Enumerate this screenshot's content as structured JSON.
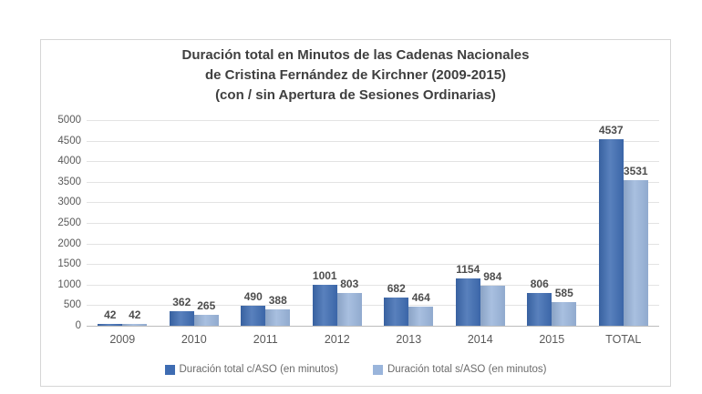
{
  "chart_data": {
    "type": "bar",
    "title": "Duración total en Minutos de las Cadenas Nacionales de Cristina Fernández de Kirchner (2009-2015) (con / sin Apertura de Sesiones Ordinarias)",
    "title_lines": [
      "Duración total en Minutos de las Cadenas Nacionales",
      "de Cristina Fernández de Kirchner (2009-2015)",
      "(con / sin Apertura de Sesiones Ordinarias)"
    ],
    "categories": [
      "2009",
      "2010",
      "2011",
      "2012",
      "2013",
      "2014",
      "2015",
      "TOTAL"
    ],
    "series": [
      {
        "name": "Duración total c/ASO (en minutos)",
        "color": "#3e6cb2",
        "values": [
          42,
          362,
          490,
          1001,
          682,
          1154,
          806,
          4537
        ]
      },
      {
        "name": "Duración total s/ASO (en minutos)",
        "color": "#9ab5db",
        "values": [
          42,
          265,
          388,
          803,
          464,
          984,
          585,
          3531
        ]
      }
    ],
    "xlabel": "",
    "ylabel": "",
    "ylim": [
      0,
      5000
    ],
    "ytick_step": 500,
    "grid": "horizontal",
    "legend_position": "bottom"
  },
  "colors": {
    "gridline": "#e3e3e3",
    "axis_line": "#bdbdbd",
    "tick_text": "#595959",
    "title_text": "#3f3f3f",
    "frame_border": "#d6d6d6"
  }
}
